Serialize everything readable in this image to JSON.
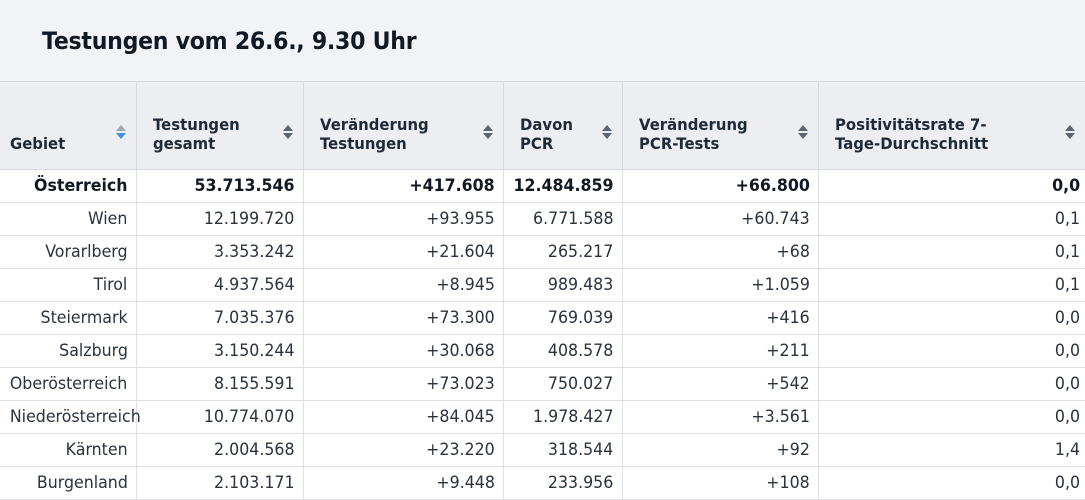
{
  "title": "Testungen vom 26.6., 9.30 Uhr",
  "columns": [
    {
      "label": "Gebiet"
    },
    {
      "label": "Testungen gesamt"
    },
    {
      "label": "Veränderung Testungen"
    },
    {
      "label": "Davon PCR"
    },
    {
      "label": "Veränderung PCR-Tests"
    },
    {
      "label": "Positivitätsrate 7-Tage-Durchschnitt"
    }
  ],
  "rows": [
    [
      "Österreich",
      "53.713.546",
      "+417.608",
      "12.484.859",
      "+66.800",
      "0,0"
    ],
    [
      "Wien",
      "12.199.720",
      "+93.955",
      "6.771.588",
      "+60.743",
      "0,1"
    ],
    [
      "Vorarlberg",
      "3.353.242",
      "+21.604",
      "265.217",
      "+68",
      "0,1"
    ],
    [
      "Tirol",
      "4.937.564",
      "+8.945",
      "989.483",
      "+1.059",
      "0,1"
    ],
    [
      "Steiermark",
      "7.035.376",
      "+73.300",
      "769.039",
      "+416",
      "0,0"
    ],
    [
      "Salzburg",
      "3.150.244",
      "+30.068",
      "408.578",
      "+211",
      "0,0"
    ],
    [
      "Oberösterreich",
      "8.155.591",
      "+73.023",
      "750.027",
      "+542",
      "0,0"
    ],
    [
      "Niederösterreich",
      "10.774.070",
      "+84.045",
      "1.978.427",
      "+3.561",
      "0,0"
    ],
    [
      "Kärnten",
      "2.004.568",
      "+23.220",
      "318.544",
      "+92",
      "1,4"
    ],
    [
      "Burgenland",
      "2.103.171",
      "+9.448",
      "233.956",
      "+108",
      "0,0"
    ]
  ],
  "colors": {
    "accent": "#4a90d9",
    "header_bg": "#eceef2",
    "title_bg": "#f2f3f6"
  }
}
